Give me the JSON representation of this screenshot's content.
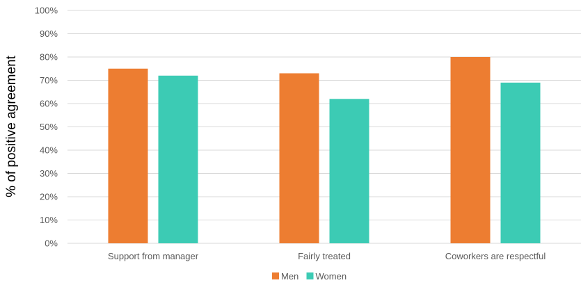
{
  "chart_data": {
    "type": "bar",
    "title": "",
    "xlabel": "",
    "ylabel": "% of positive agreement",
    "categories": [
      "Support from manager",
      "Fairly treated",
      "Coworkers are respectful"
    ],
    "series": [
      {
        "name": "Men",
        "values": [
          75,
          73,
          80
        ],
        "color": "#ED7D31"
      },
      {
        "name": "Women",
        "values": [
          72,
          62,
          69
        ],
        "color": "#3CCBB4"
      }
    ],
    "ylim": [
      0,
      100
    ],
    "yticks": [
      "0%",
      "10%",
      "20%",
      "30%",
      "40%",
      "50%",
      "60%",
      "70%",
      "80%",
      "90%",
      "100%"
    ],
    "grid": true,
    "legend_position": "bottom"
  }
}
